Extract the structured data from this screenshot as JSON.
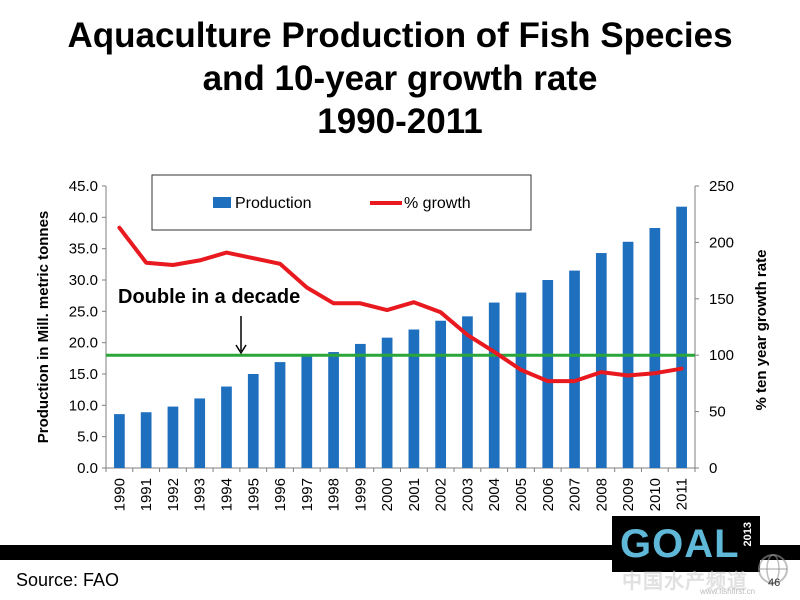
{
  "title_lines": [
    "Aquaculture Production of Fish Species",
    "and 10-year growth rate",
    "1990-2011"
  ],
  "source": "Source: FAO",
  "page_number": "46",
  "logo": {
    "text": "GOAL",
    "year": "2013"
  },
  "watermark": {
    "text": "中国水产频道",
    "url": "www.fishfirst.cn"
  },
  "chart_data": {
    "type": "bar",
    "categories": [
      "1990",
      "1991",
      "1992",
      "1993",
      "1994",
      "1995",
      "1996",
      "1997",
      "1998",
      "1999",
      "2000",
      "2001",
      "2002",
      "2003",
      "2004",
      "2005",
      "2006",
      "2007",
      "2008",
      "2009",
      "2010",
      "2011"
    ],
    "series": [
      {
        "name": "Production",
        "type": "bar",
        "axis": "left",
        "color": "#1f6fbf",
        "values": [
          8.6,
          8.9,
          9.8,
          11.1,
          13.0,
          15.0,
          16.9,
          18.0,
          18.5,
          19.8,
          20.8,
          22.1,
          23.5,
          24.2,
          26.4,
          28.0,
          30.0,
          31.5,
          34.3,
          36.1,
          38.3,
          41.7
        ]
      },
      {
        "name": "% growth",
        "type": "line",
        "axis": "right",
        "color": "#e8191f",
        "values": [
          213,
          182,
          180,
          184,
          191,
          186,
          181,
          160,
          146,
          146,
          140,
          147,
          138,
          118,
          103,
          87,
          77,
          77,
          85,
          82,
          84,
          88
        ]
      }
    ],
    "ylabel_left": "Production in Mill. metric tonnes",
    "ylabel_right": "% ten year growth rate",
    "ylim_left": [
      0,
      45
    ],
    "yticks_left": [
      "0.0",
      "5.0",
      "10.0",
      "15.0",
      "20.0",
      "25.0",
      "30.0",
      "35.0",
      "40.0",
      "45.0"
    ],
    "ylim_right": [
      0,
      250
    ],
    "yticks_right": [
      "0",
      "50",
      "100",
      "150",
      "200",
      "250"
    ],
    "reference_line": {
      "value_right": 100,
      "color": "#2aa53a"
    },
    "annotation": "Double in a decade",
    "legend_position": "top-center",
    "grid": false
  }
}
